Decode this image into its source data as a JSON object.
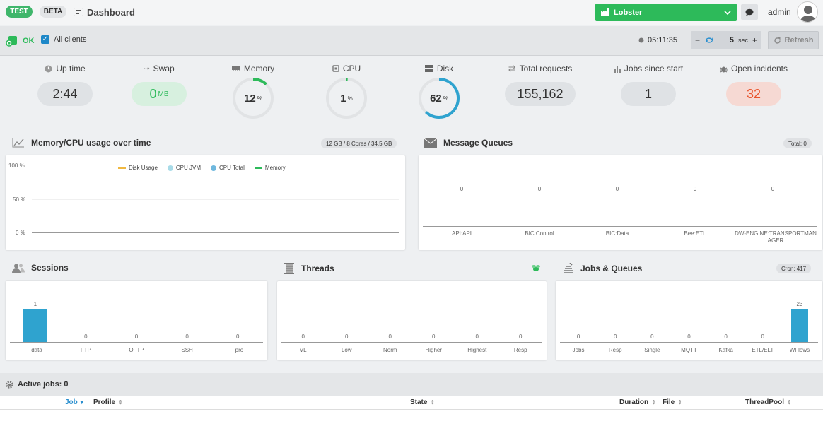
{
  "header": {
    "test_badge": "TEST",
    "beta_badge": "BETA",
    "title": "Dashboard",
    "tenant": "Lobster",
    "user": "admin"
  },
  "toolbar": {
    "status": "OK",
    "all_clients": "All clients",
    "time": "05:11:35",
    "interval_value": "5",
    "interval_unit": "sec",
    "refresh_label": "Refresh"
  },
  "stats": {
    "uptime": {
      "label": "Up time",
      "value": "2:44"
    },
    "swap": {
      "label": "Swap",
      "value": "0",
      "unit": "MB"
    },
    "memory": {
      "label": "Memory",
      "value": "12",
      "unit": "%",
      "percent": 12
    },
    "cpu": {
      "label": "CPU",
      "value": "1",
      "unit": "%",
      "percent": 1
    },
    "disk": {
      "label": "Disk",
      "value": "62",
      "unit": "%",
      "percent": 62
    },
    "requests": {
      "label": "Total requests",
      "value": "155,162"
    },
    "jobs": {
      "label": "Jobs since start",
      "value": "1"
    },
    "incidents": {
      "label": "Open incidents",
      "value": "32"
    }
  },
  "memcpu": {
    "title": "Memory/CPU usage over time",
    "tag": "12 GB / 8 Cores / 34.5 GB",
    "y_ticks": [
      "100 %",
      "50 %",
      "0 %"
    ],
    "legend": [
      "Disk Usage",
      "CPU JVM",
      "CPU Total",
      "Memory"
    ],
    "colors": [
      "#f0b840",
      "#a8dbe8",
      "#6fb8de",
      "#2dba5a"
    ]
  },
  "mq": {
    "title": "Message Queues",
    "tag": "Total: 0",
    "values": [
      "0",
      "0",
      "0",
      "0",
      "0"
    ],
    "categories": [
      "API:API",
      "BIC:Control",
      "BIC:Data",
      "Bee:ETL",
      "DW-ENGINE:TRANSPORTMANAGER"
    ]
  },
  "sessions": {
    "title": "Sessions",
    "categories": [
      "_data",
      "FTP",
      "OFTP",
      "SSH",
      "_pro"
    ],
    "values": [
      1,
      0,
      0,
      0,
      0
    ],
    "labels": [
      "1",
      "0",
      "0",
      "0",
      "0"
    ]
  },
  "threads": {
    "title": "Threads",
    "categories": [
      "VL",
      "Low",
      "Norm",
      "Higher",
      "Highest",
      "Resp"
    ],
    "values": [
      0,
      0,
      0,
      0,
      0,
      0
    ],
    "labels": [
      "0",
      "0",
      "0",
      "0",
      "0",
      "0"
    ]
  },
  "jq": {
    "title": "Jobs & Queues",
    "tag": "Cron: 417",
    "categories": [
      "Jobs",
      "Resp",
      "Single",
      "MQTT",
      "Kafka",
      "ETL/ELT",
      "WFlows"
    ],
    "values": [
      0,
      0,
      0,
      0,
      0,
      0,
      23
    ],
    "labels": [
      "0",
      "0",
      "0",
      "0",
      "0",
      "0",
      "23"
    ]
  },
  "active_jobs": {
    "title": "Active jobs: 0",
    "columns": [
      "Job",
      "Profile",
      "State",
      "Duration",
      "File",
      "ThreadPool"
    ]
  },
  "colors": {
    "accent": "#2dba5a",
    "bar": "#2fa3cf",
    "incident": "#e8542c"
  }
}
